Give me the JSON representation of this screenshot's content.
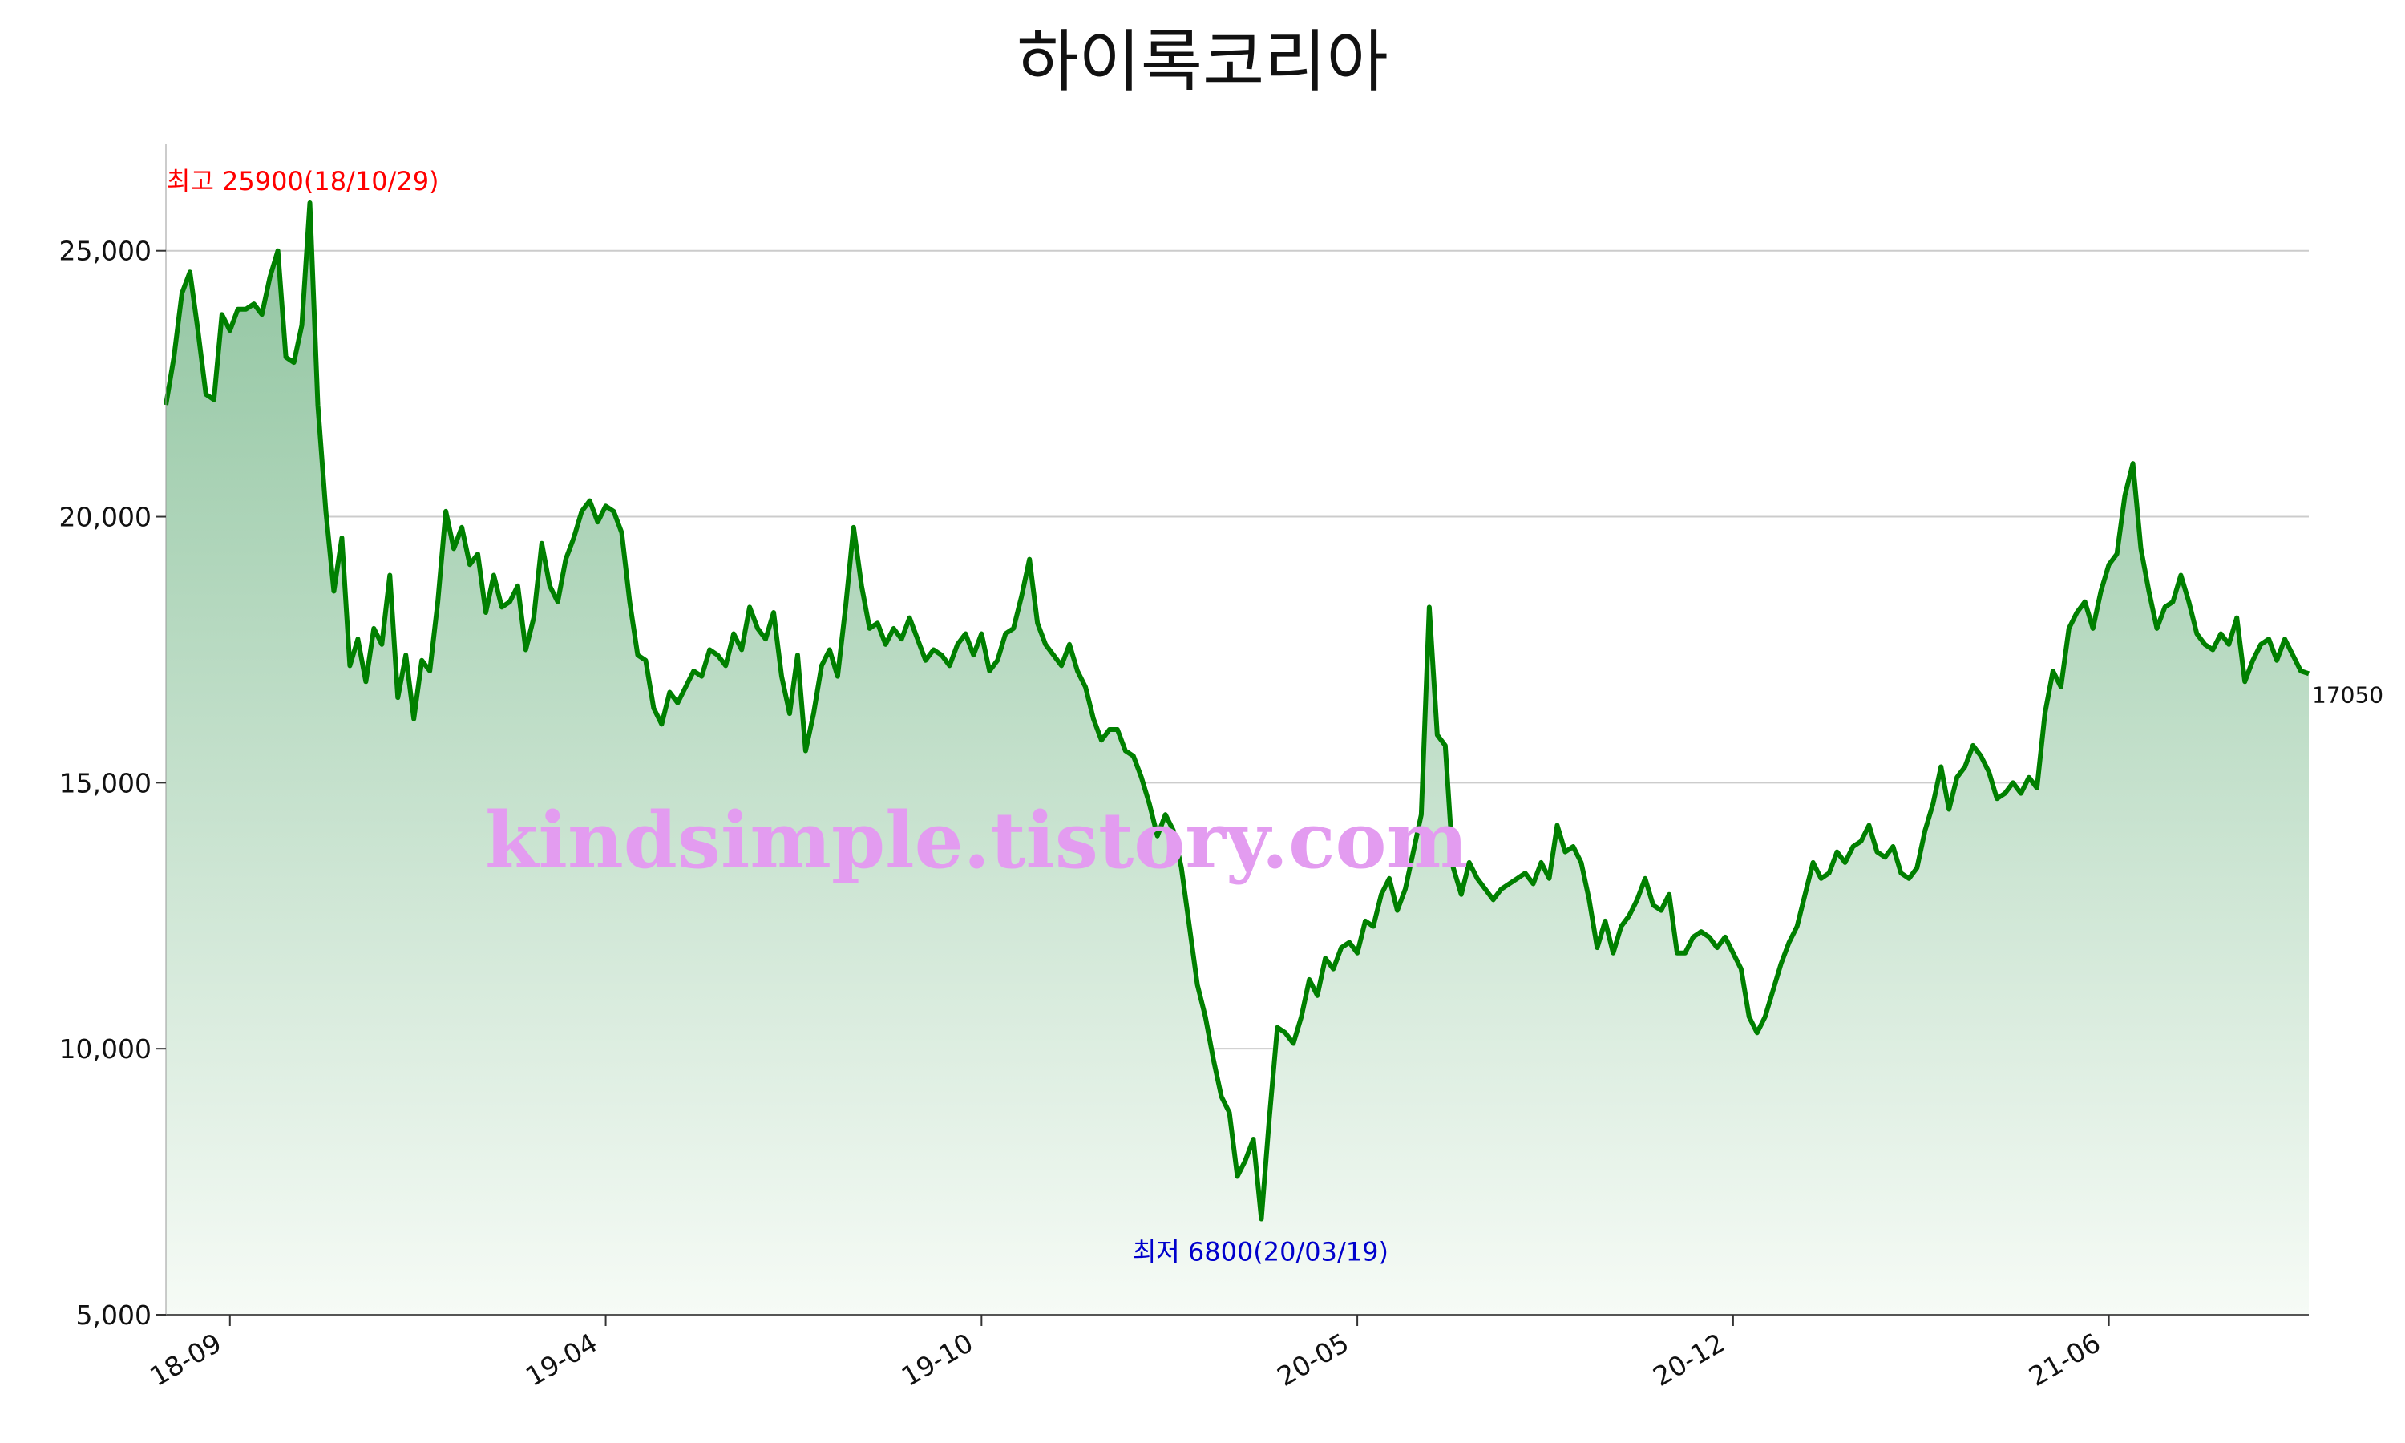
{
  "chart_data": {
    "type": "area",
    "title": "하이록코리아",
    "xlabel": "",
    "ylabel": "",
    "ylim": [
      5000,
      27000
    ],
    "yticks": [
      5000,
      10000,
      15000,
      20000,
      25000
    ],
    "ytick_labels": [
      "5,000",
      "10,000",
      "15,000",
      "20,000",
      "25,000"
    ],
    "xtick_labels": [
      "18-09",
      "19-04",
      "19-10",
      "20-05",
      "20-12",
      "21-06"
    ],
    "xtick_index": [
      8,
      55,
      102,
      149,
      196,
      243
    ],
    "grid": true,
    "line_color": "#008000",
    "fill_gradient": [
      "#8fc49f",
      "#f6fbf6"
    ],
    "annotations": {
      "max": {
        "text": "최고 25900(18/10/29)",
        "value": 25900,
        "index": 18,
        "color": "#ff0000"
      },
      "min": {
        "text": "최저 6800(20/03/19)",
        "value": 6800,
        "index": 137,
        "color": "#0000cc"
      },
      "last": {
        "text": "17050",
        "value": 17050
      }
    },
    "watermark": "kindsimple.tistory.com",
    "values": [
      22100,
      23000,
      24200,
      24600,
      23500,
      22300,
      22200,
      23800,
      23500,
      23900,
      23900,
      24000,
      23800,
      24500,
      25000,
      23000,
      22900,
      23600,
      25900,
      22100,
      20100,
      18600,
      19600,
      17200,
      17700,
      16900,
      17900,
      17600,
      18900,
      16600,
      17400,
      16200,
      17300,
      17100,
      18400,
      20100,
      19400,
      19800,
      19100,
      19300,
      18200,
      18900,
      18300,
      18400,
      18700,
      17500,
      18100,
      19500,
      18700,
      18400,
      19200,
      19600,
      20100,
      20300,
      19900,
      20200,
      20100,
      19700,
      18400,
      17400,
      17300,
      16400,
      16100,
      16700,
      16500,
      16800,
      17100,
      17000,
      17500,
      17400,
      17200,
      17800,
      17500,
      18300,
      17900,
      17700,
      18200,
      17000,
      16300,
      17400,
      15600,
      16300,
      17200,
      17500,
      17000,
      18300,
      19800,
      18700,
      17900,
      18000,
      17600,
      17900,
      17700,
      18100,
      17700,
      17300,
      17500,
      17400,
      17200,
      17600,
      17800,
      17400,
      17800,
      17100,
      17300,
      17800,
      17900,
      18500,
      19200,
      18000,
      17600,
      17400,
      17200,
      17600,
      17100,
      16800,
      16200,
      15800,
      16000,
      16000,
      15600,
      15500,
      15100,
      14600,
      14000,
      14400,
      14100,
      13400,
      12300,
      11200,
      10600,
      9800,
      9100,
      8800,
      7600,
      7900,
      8300,
      6800,
      8700,
      10400,
      10300,
      10100,
      10600,
      11300,
      11000,
      11700,
      11500,
      11900,
      12000,
      11800,
      12400,
      12300,
      12900,
      13200,
      12600,
      13000,
      13700,
      14400,
      18300,
      15900,
      15700,
      13400,
      12900,
      13500,
      13200,
      13000,
      12800,
      13000,
      13100,
      13200,
      13300,
      13100,
      13500,
      13200,
      14200,
      13700,
      13800,
      13500,
      12800,
      11900,
      12400,
      11800,
      12300,
      12500,
      12800,
      13200,
      12700,
      12600,
      12900,
      11800,
      11800,
      12100,
      12200,
      12100,
      11900,
      12100,
      11800,
      11500,
      10600,
      10300,
      10600,
      11100,
      11600,
      12000,
      12300,
      12900,
      13500,
      13200,
      13300,
      13700,
      13500,
      13800,
      13900,
      14200,
      13700,
      13600,
      13800,
      13300,
      13200,
      13400,
      14100,
      14600,
      15300,
      14500,
      15100,
      15300,
      15700,
      15500,
      15200,
      14700,
      14800,
      15000,
      14800,
      15100,
      14900,
      16300,
      17100,
      16800,
      17900,
      18200,
      18400,
      17900,
      18600,
      19100,
      19300,
      20400,
      21000,
      19400,
      18600,
      17900,
      18300,
      18400,
      18900,
      18400,
      17800,
      17600,
      17500,
      17800,
      17600,
      18100,
      16900,
      17300,
      17600,
      17700,
      17300,
      17700,
      17400,
      17100,
      17050
    ]
  }
}
